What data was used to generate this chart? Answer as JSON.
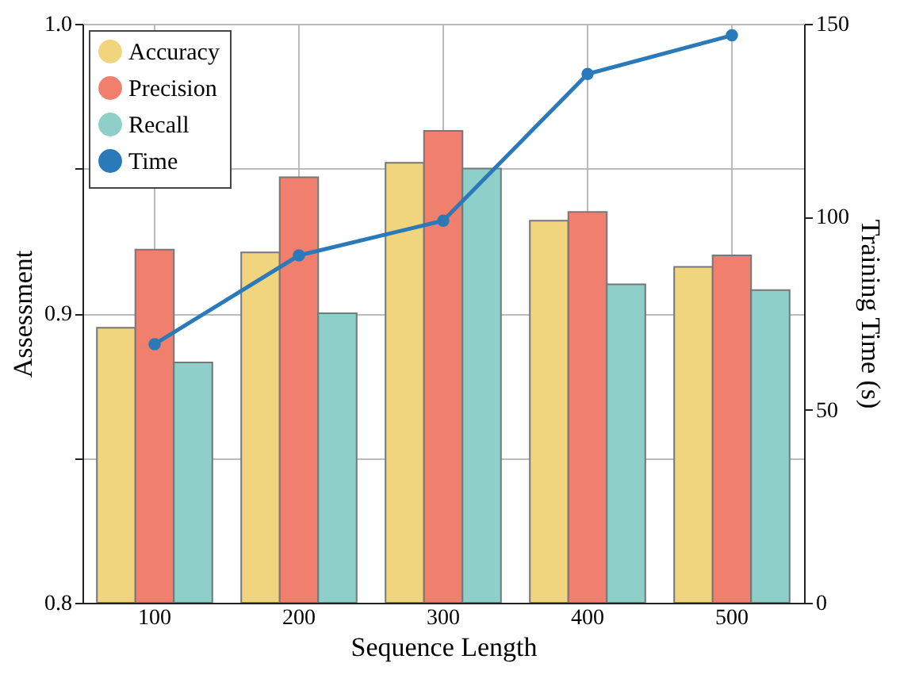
{
  "chart_data": {
    "type": "bar",
    "xlabel": "Sequence Length",
    "ylabel": "Assessment",
    "y2label": "Training Time (s)",
    "categories": [
      "100",
      "200",
      "300",
      "400",
      "500"
    ],
    "series": [
      {
        "name": "Accuracy",
        "color": "#f0d57e",
        "values": [
          0.895,
          0.921,
          0.952,
          0.932,
          0.916
        ]
      },
      {
        "name": "Precision",
        "color": "#f07f6e",
        "values": [
          0.922,
          0.947,
          0.963,
          0.935,
          0.92
        ]
      },
      {
        "name": "Recall",
        "color": "#8ecfc9",
        "values": [
          0.883,
          0.9,
          0.95,
          0.91,
          0.908
        ]
      },
      {
        "name": "Time",
        "color": "#2a7ab9",
        "type": "line",
        "axis": "y2",
        "values": [
          67,
          90,
          99,
          137,
          147
        ]
      }
    ],
    "ylim": [
      0.8,
      1.0
    ],
    "yticks": [
      0.8,
      {
        "value": 0.85,
        "label": null
      },
      0.9,
      {
        "value": 0.95,
        "label": null
      },
      {
        "value": 1.0,
        "label": "1.0"
      }
    ],
    "y2lim": [
      0,
      150
    ],
    "y2ticks": [
      0,
      50,
      100,
      150
    ],
    "grid": true,
    "legend": "top left",
    "marker": "circle"
  }
}
